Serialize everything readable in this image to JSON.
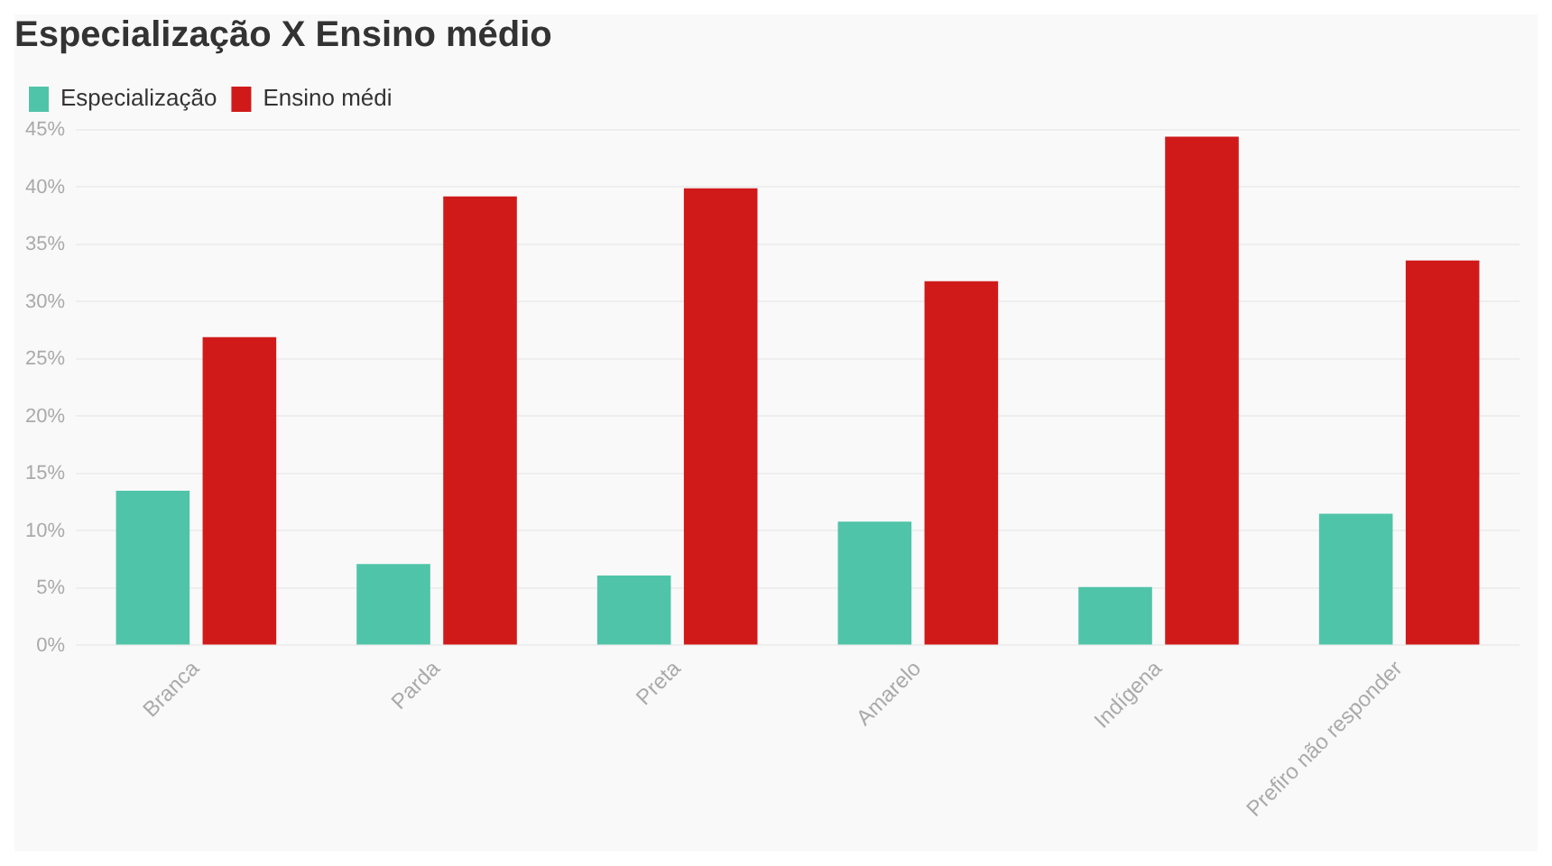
{
  "chart_data": {
    "type": "bar",
    "title": "Especialização X Ensino médio",
    "categories": [
      "Branca",
      "Parda",
      "Preta",
      "Amarelo",
      "Indígena",
      "Prefiro não responder"
    ],
    "series": [
      {
        "name": "Especialização",
        "color": "#50c4a8",
        "values": [
          13.5,
          7.1,
          6.1,
          10.8,
          5.1,
          11.5
        ]
      },
      {
        "name": "Ensino médi",
        "color": "#d01a1a",
        "values": [
          26.9,
          39.2,
          39.9,
          31.8,
          44.4,
          33.6
        ]
      }
    ],
    "ylim": [
      0,
      45
    ],
    "yticks": [
      {
        "value": 0,
        "label": "0%"
      },
      {
        "value": 5,
        "label": "5%"
      },
      {
        "value": 10,
        "label": "10%"
      },
      {
        "value": 15,
        "label": "15%"
      },
      {
        "value": 20,
        "label": "20%"
      },
      {
        "value": 25,
        "label": "25%"
      },
      {
        "value": 30,
        "label": "30%"
      },
      {
        "value": 35,
        "label": "35%"
      },
      {
        "value": 40,
        "label": "40%"
      },
      {
        "value": 45,
        "label": "45%"
      }
    ],
    "grid": "y",
    "legend": "top left"
  }
}
